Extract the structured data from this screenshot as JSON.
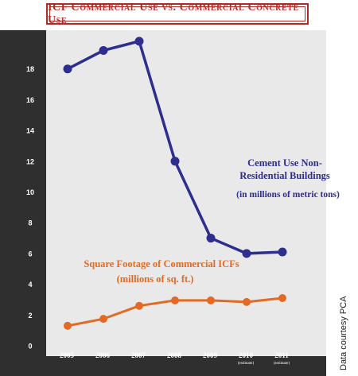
{
  "title": "ICF Commercial Use vs. Commercial Concrete Use",
  "credit": "Data courtesy PCA",
  "colors": {
    "background": "#e9e9e9",
    "axis_band": "#2f2f2f",
    "title_accent": "#b22a26",
    "cement_series": "#2e2e8f",
    "icf_series": "#e26a24"
  },
  "chart_data": {
    "type": "line",
    "x": [
      "2005",
      "2006",
      "2007",
      "2008",
      "2009",
      "2010",
      "2011"
    ],
    "x_sublabels": [
      "",
      "",
      "",
      "",
      "",
      "(estimate)",
      "(estimate)"
    ],
    "ylim": [
      0,
      20
    ],
    "yticks": [
      0,
      2,
      4,
      6,
      8,
      10,
      12,
      14,
      16,
      18
    ],
    "grid": false,
    "series": [
      {
        "name": "Cement Use Non-Residential Buildings (in millions of metric tons)",
        "label_lines": [
          "Cement Use Non-",
          "Residential Buildings"
        ],
        "sublabel": "(in millions of metric tons)",
        "values": [
          18,
          19.2,
          19.8,
          12,
          7,
          6,
          6.1
        ]
      },
      {
        "name": "Square Footage of Commercial ICFs (millions of sq. ft.)",
        "label_lines": [
          "Square Footage of Commercial ICFs"
        ],
        "sublabel": "(millions of sq. ft.)",
        "values": [
          1.3,
          1.75,
          2.6,
          2.95,
          2.95,
          2.85,
          3.1
        ]
      }
    ]
  }
}
